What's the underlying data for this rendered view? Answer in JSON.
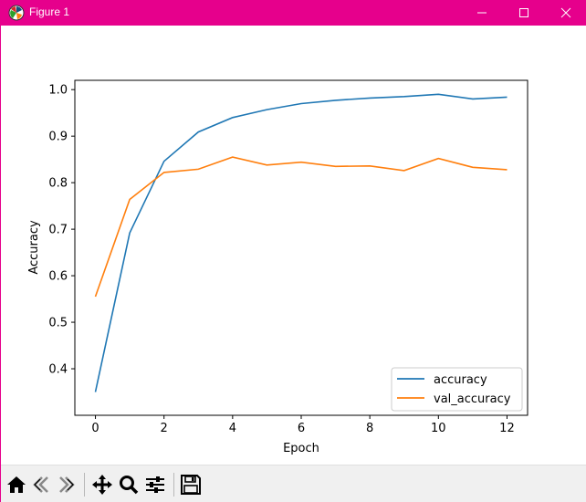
{
  "window": {
    "title": "Figure 1"
  },
  "toolbar": {
    "buttons": [
      {
        "name": "home-icon"
      },
      {
        "name": "back-icon"
      },
      {
        "name": "forward-icon"
      },
      {
        "name": "pan-icon"
      },
      {
        "name": "zoom-icon"
      },
      {
        "name": "configure-subplots-icon"
      },
      {
        "name": "save-icon"
      }
    ]
  },
  "colors": {
    "titlebar": "#e6008c",
    "accuracy": "#1f77b4",
    "val_accuracy": "#ff7f0e"
  },
  "chart_data": {
    "type": "line",
    "title": "",
    "xlabel": "Epoch",
    "ylabel": "Accuracy",
    "xlim": [
      -0.6,
      12.6
    ],
    "ylim": [
      0.3,
      1.02
    ],
    "xticks": [
      0,
      2,
      4,
      6,
      8,
      10,
      12
    ],
    "yticks": [
      0.4,
      0.5,
      0.6,
      0.7,
      0.8,
      0.9,
      1.0
    ],
    "x": [
      0,
      1,
      2,
      3,
      4,
      5,
      6,
      7,
      8,
      9,
      10,
      11,
      12
    ],
    "series": [
      {
        "name": "accuracy",
        "color": "#1f77b4",
        "values": [
          0.35,
          0.692,
          0.846,
          0.909,
          0.94,
          0.957,
          0.97,
          0.977,
          0.982,
          0.985,
          0.99,
          0.98,
          0.984
        ]
      },
      {
        "name": "val_accuracy",
        "color": "#ff7f0e",
        "values": [
          0.555,
          0.764,
          0.822,
          0.829,
          0.855,
          0.838,
          0.844,
          0.835,
          0.836,
          0.826,
          0.852,
          0.833,
          0.828
        ]
      }
    ],
    "legend": "lower-right",
    "grid": false
  }
}
